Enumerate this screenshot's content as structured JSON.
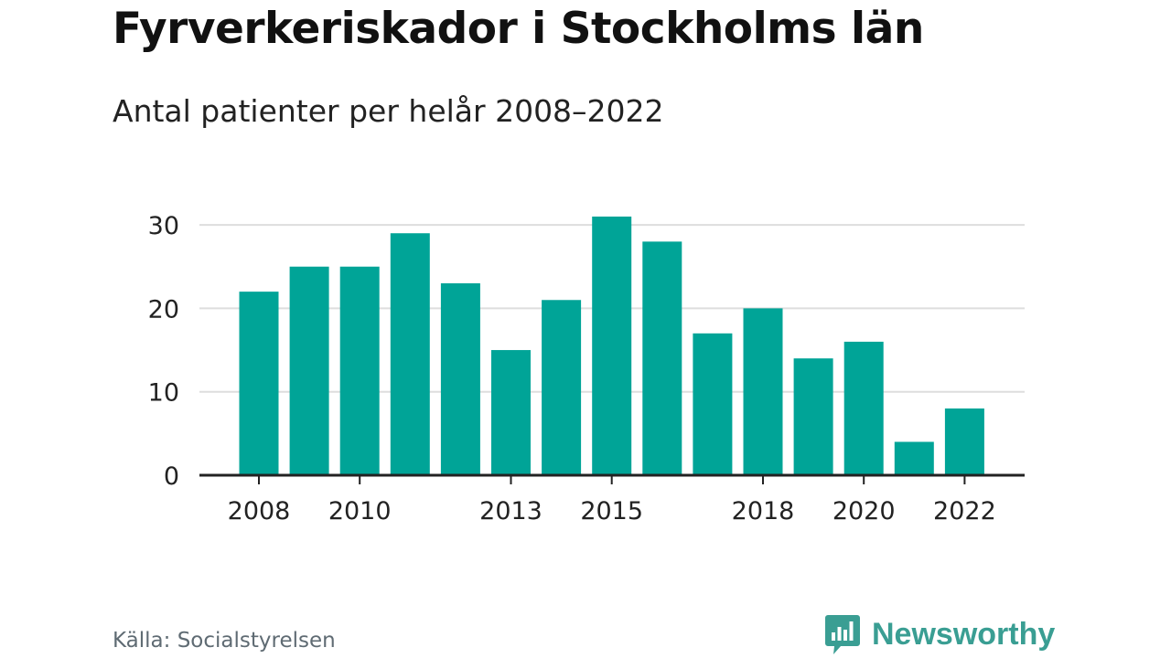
{
  "header": {
    "title": "Fyrverkeriskador i Stockholms län",
    "subtitle": "Antal patienter per helår 2008–2022"
  },
  "footer": {
    "source": "Källa: Socialstyrelsen",
    "brand": "Newsworthy",
    "brand_icon": "bar-chart-speech-bubble-icon"
  },
  "colors": {
    "bar": "#00a497",
    "grid": "#dddddd",
    "axis": "#222222",
    "brand": "#3a9e93"
  },
  "chart_data": {
    "type": "bar",
    "title": "Fyrverkeriskador i Stockholms län",
    "subtitle": "Antal patienter per helår 2008–2022",
    "categories": [
      "2008",
      "2009",
      "2010",
      "2011",
      "2012",
      "2013",
      "2014",
      "2015",
      "2016",
      "2017",
      "2018",
      "2019",
      "2020",
      "2021",
      "2022"
    ],
    "values": [
      22,
      25,
      25,
      29,
      23,
      15,
      21,
      31,
      28,
      17,
      20,
      14,
      16,
      4,
      8
    ],
    "x_tick_labels": [
      "2008",
      "2010",
      "2013",
      "2015",
      "2018",
      "2020",
      "2022"
    ],
    "y_ticks": [
      0,
      10,
      20,
      30
    ],
    "ylim": [
      0,
      30
    ],
    "xlabel": "",
    "ylabel": "",
    "grid": true,
    "legend": "none"
  }
}
